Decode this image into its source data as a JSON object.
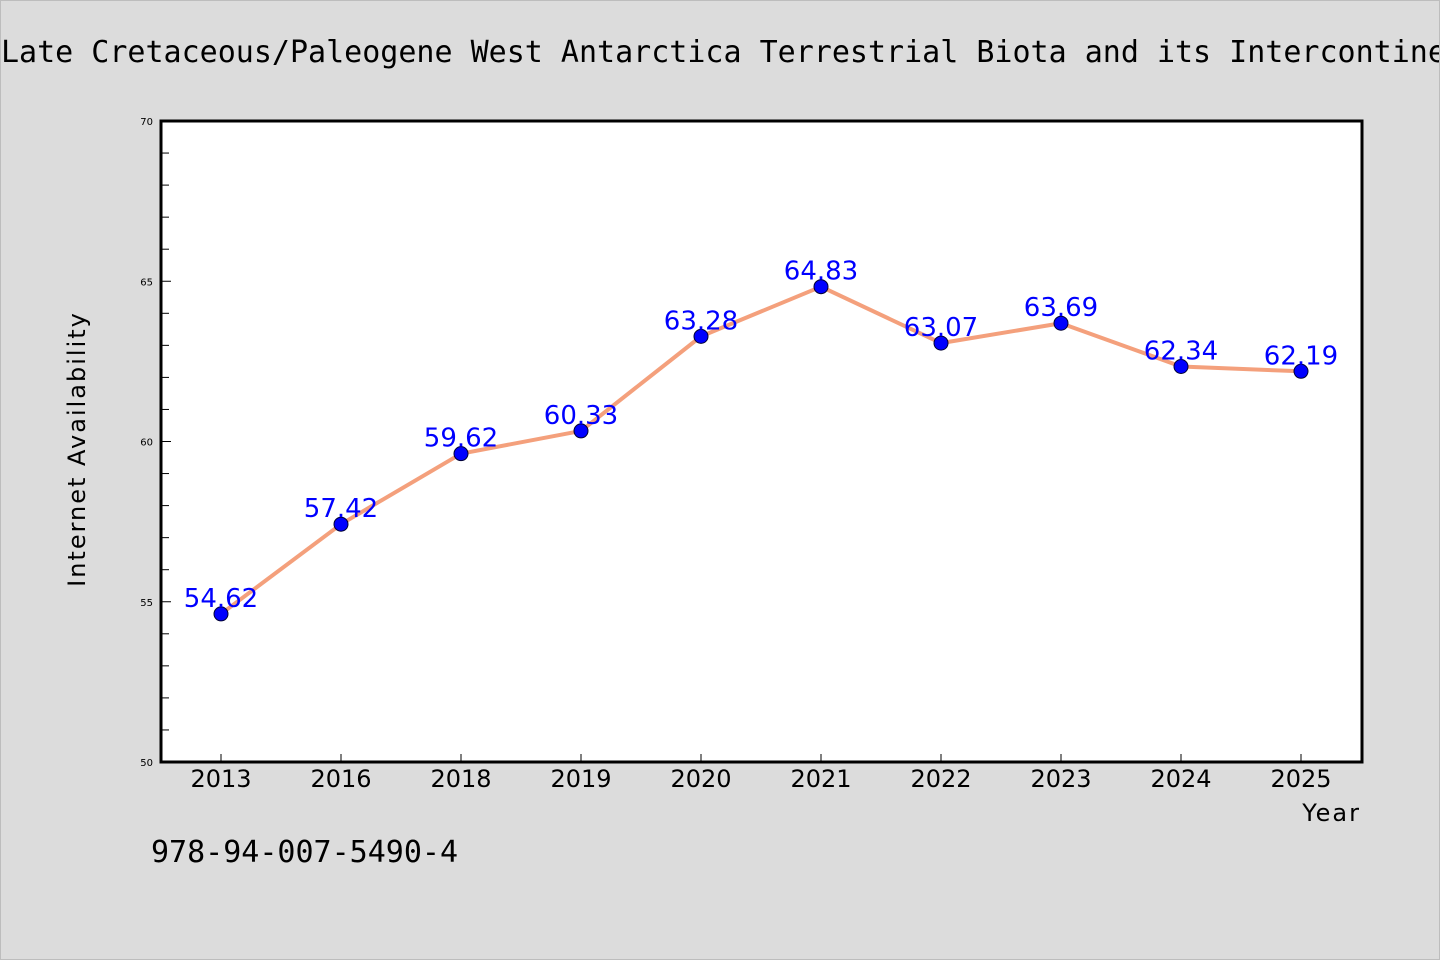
{
  "title": "Late Cretaceous/Paleogene West Antarctica Terrestrial Biota and its Intercontinental Affinities",
  "footer_text": "978-94-007-5490-4",
  "chart_data": {
    "type": "line",
    "title": "Late Cretaceous/Paleogene West Antarctica Terrestrial Biota and its Intercontinental Affinities",
    "xlabel": "Year",
    "ylabel": "Internet Availability",
    "categories": [
      "2013",
      "2016",
      "2018",
      "2019",
      "2020",
      "2021",
      "2022",
      "2023",
      "2024",
      "2025"
    ],
    "series": [
      {
        "values": [
          54.62,
          57.42,
          59.62,
          60.33,
          63.28,
          64.83,
          63.07,
          63.69,
          62.34,
          62.19
        ],
        "labels": [
          "54.62",
          "57.42",
          "59.62",
          "60.33",
          "63.28",
          "64.83",
          "63.07",
          "63.69",
          "62.34",
          "62.19"
        ],
        "line_color": "#f4a07c",
        "marker_color": "#0000ff"
      }
    ],
    "ylim": [
      50,
      70
    ],
    "y_ticks": [
      50,
      55,
      60,
      65,
      70
    ],
    "y_tick_labels": [
      "50",
      "55",
      "60",
      "65",
      "70"
    ],
    "grid": false,
    "legend": "none",
    "label_color": "#0000ff",
    "background": "#dcdcdc",
    "plot_background": "#ffffff"
  }
}
